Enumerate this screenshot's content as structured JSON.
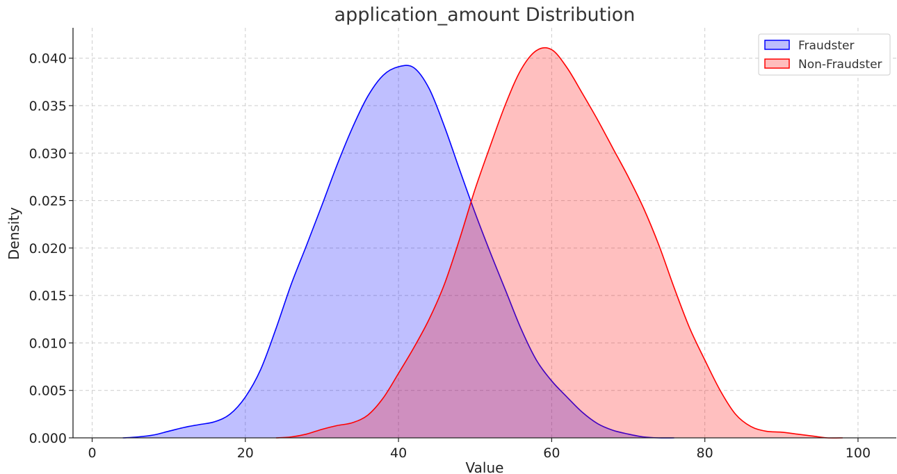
{
  "chart_data": {
    "type": "area",
    "title": "application_amount Distribution",
    "xlabel": "Value",
    "ylabel": "Density",
    "xlim": [
      -2.5,
      105
    ],
    "ylim": [
      0,
      0.0432
    ],
    "xticks": [
      0,
      20,
      40,
      60,
      80,
      100
    ],
    "xtick_labels": [
      "0",
      "20",
      "40",
      "60",
      "80",
      "100"
    ],
    "yticks": [
      0,
      0.005,
      0.01,
      0.015,
      0.02,
      0.025,
      0.03,
      0.035,
      0.04
    ],
    "ytick_labels": [
      "0.000",
      "0.005",
      "0.010",
      "0.015",
      "0.020",
      "0.025",
      "0.030",
      "0.035",
      "0.040"
    ],
    "grid": true,
    "legend_position": "top-right",
    "series": [
      {
        "name": "Fraudster",
        "color": "#0000ff",
        "fill": "#bdbdfc",
        "x": [
          4,
          6,
          8,
          10,
          12,
          14,
          16,
          18,
          20,
          22,
          24,
          26,
          28,
          30,
          32,
          34,
          36,
          38,
          40,
          42,
          44,
          46,
          48,
          50,
          52,
          54,
          56,
          58,
          60,
          62,
          64,
          66,
          68,
          70,
          72,
          74,
          76
        ],
        "y": [
          0.0,
          0.0001,
          0.0003,
          0.0007,
          0.0011,
          0.0014,
          0.0017,
          0.0025,
          0.0043,
          0.0072,
          0.0115,
          0.0162,
          0.0203,
          0.0245,
          0.0288,
          0.0327,
          0.036,
          0.0382,
          0.0391,
          0.039,
          0.0368,
          0.0328,
          0.0282,
          0.0237,
          0.0195,
          0.0155,
          0.0115,
          0.0082,
          0.006,
          0.0043,
          0.0027,
          0.0015,
          0.0008,
          0.0004,
          0.0001,
          0.0,
          0.0
        ]
      },
      {
        "name": "Non-Fraudster",
        "color": "#ff0000",
        "fill": "#ffbdbd",
        "x": [
          24,
          26,
          28,
          30,
          32,
          34,
          36,
          38,
          40,
          42,
          44,
          46,
          48,
          50,
          52,
          54,
          56,
          58,
          60,
          62,
          64,
          66,
          68,
          70,
          72,
          74,
          76,
          78,
          80,
          82,
          84,
          86,
          88,
          90,
          92,
          94,
          96,
          98
        ],
        "y": [
          0.0,
          0.0001,
          0.0004,
          0.0009,
          0.0013,
          0.0016,
          0.0024,
          0.0042,
          0.0068,
          0.0095,
          0.0125,
          0.0162,
          0.021,
          0.0262,
          0.0308,
          0.0352,
          0.0388,
          0.0408,
          0.0409,
          0.039,
          0.0363,
          0.0335,
          0.0305,
          0.0275,
          0.0242,
          0.0203,
          0.0158,
          0.0116,
          0.0082,
          0.005,
          0.0025,
          0.0012,
          0.0007,
          0.0006,
          0.0004,
          0.0002,
          0.0,
          0.0
        ]
      }
    ]
  }
}
